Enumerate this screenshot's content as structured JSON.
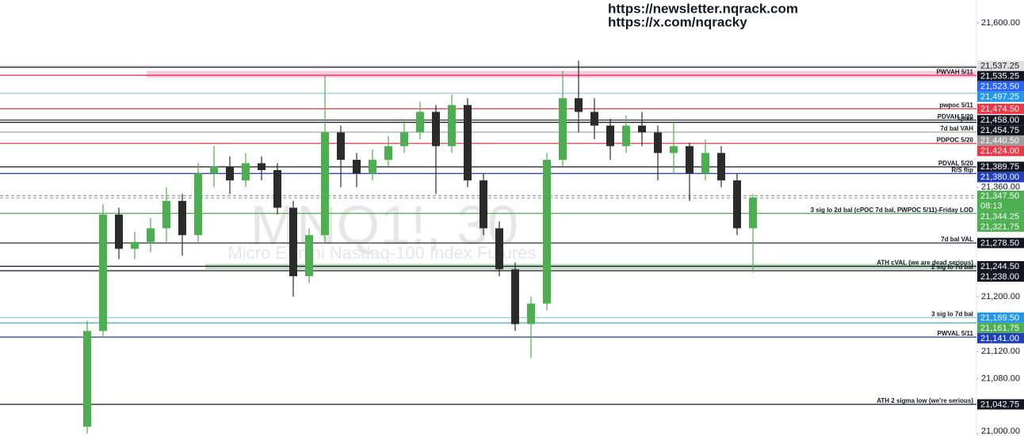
{
  "chart_data": {
    "type": "candlestick",
    "header": [
      "https://newsletter.nqrack.com",
      "https://x.com/nqracky"
    ],
    "symbol": "MNQ1!, 30",
    "description": "Micro E-mini Nasdaq-100 Index Futures",
    "ylim": [
      20996.5,
      21633.5
    ],
    "yticks": [
      {
        "value": 21600,
        "label": "21,600.00"
      },
      {
        "value": 21360,
        "label": "21,360.00"
      },
      {
        "value": 21200,
        "label": "21,200.00"
      },
      {
        "value": 21120,
        "label": "21,120.00"
      },
      {
        "value": 21080,
        "label": "21,080.00"
      },
      {
        "value": 21000,
        "label": "21,000.00"
      }
    ],
    "up_color": "#4caf50",
    "down_color": "#2b2b2b",
    "categories": [
      null,
      null,
      null,
      null,
      null,
      null,
      null,
      null,
      null,
      null,
      null,
      null,
      null,
      null,
      null,
      null,
      null,
      null,
      null,
      null,
      null,
      null,
      null,
      null,
      null,
      null,
      null,
      null,
      null,
      null,
      null,
      null,
      null,
      null,
      null,
      null,
      null,
      null,
      null,
      null,
      null,
      null,
      null
    ],
    "open": [
      21010,
      21150,
      21320,
      21270,
      21280,
      21300,
      21340,
      21290,
      21380,
      21390,
      21370,
      21395,
      21385,
      21330,
      21230,
      21290,
      21440,
      21400,
      21380,
      21400,
      21420,
      21440,
      21470,
      21420,
      21480,
      21370,
      21300,
      21240,
      21160,
      21190,
      21400,
      21490,
      21470,
      21450,
      21420,
      21450,
      21440,
      21410,
      21420,
      21380,
      21410,
      21370,
      21300
    ],
    "high": [
      21165,
      21335,
      21330,
      21295,
      21315,
      21360,
      21350,
      21395,
      21420,
      21405,
      21410,
      21405,
      21395,
      21340,
      21300,
      21525,
      21450,
      21410,
      21415,
      21435,
      21460,
      21485,
      21480,
      21495,
      21490,
      21380,
      21310,
      21250,
      21200,
      21410,
      21530,
      21545,
      21490,
      21460,
      21465,
      21470,
      21450,
      21455,
      21425,
      21430,
      21420,
      21380,
      21350
    ],
    "low": [
      21000,
      21140,
      21255,
      21255,
      21265,
      21280,
      21260,
      21280,
      21360,
      21350,
      21360,
      21370,
      21320,
      21200,
      21220,
      21280,
      21360,
      21360,
      21370,
      21390,
      21410,
      21430,
      21350,
      21410,
      21360,
      21290,
      21230,
      21150,
      21110,
      21180,
      21390,
      21440,
      21430,
      21400,
      21410,
      21420,
      21370,
      21380,
      21340,
      21370,
      21360,
      21290,
      21235
    ],
    "close": [
      21150,
      21320,
      21270,
      21280,
      21300,
      21340,
      21290,
      21380,
      21390,
      21370,
      21395,
      21385,
      21330,
      21230,
      21290,
      21440,
      21400,
      21380,
      21400,
      21420,
      21440,
      21470,
      21420,
      21480,
      21370,
      21300,
      21240,
      21160,
      21190,
      21400,
      21490,
      21470,
      21450,
      21420,
      21450,
      21440,
      21410,
      21420,
      21380,
      21410,
      21370,
      21300,
      21345
    ],
    "bands": [
      {
        "from": 21520,
        "to": 21530,
        "color": "#f8c8d4"
      },
      {
        "from": 21240,
        "to": 21248,
        "color": "#b9d8b9"
      }
    ],
    "countdown": "08:13",
    "levels": [
      {
        "price": 21537.25,
        "price_label": "21,537.25",
        "color": "#d0d0d0",
        "tag_color": "#e0e0e0",
        "text_color": "#131722"
      },
      {
        "price": 21535.25,
        "price_label": "21,535.25",
        "color": "#131722",
        "tag_color": "#131722",
        "text_color": "#ffffff"
      },
      {
        "price": 21523.5,
        "price_label": "21,523.50",
        "label": "PWVAH 5/11",
        "color": "#e91e63",
        "tag_color": "#2962ff",
        "text_color": "#ffffff"
      },
      {
        "price": 21497.25,
        "price_label": "21,497.25",
        "color": "#90caf9",
        "tag_color": "#2196f3",
        "text_color": "#ffffff"
      },
      {
        "price": 21474.5,
        "price_label": "21,474.50",
        "label": "pwpoc 5/11",
        "color": "#f23645",
        "tag_color": "#f23645",
        "text_color": "#ffffff"
      },
      {
        "price": 21458,
        "price_label": "21,458.00",
        "label": "PDVAH 5/20",
        "color": "#131722",
        "tag_color": "#131722",
        "text_color": "#ffffff"
      },
      {
        "price": 21454.75,
        "price_label": "21,454.75",
        "label": "spike",
        "color": "#131722",
        "tag_color": "#131722",
        "text_color": "#ffffff"
      },
      {
        "price": 21440.5,
        "price_label": "21,440.50",
        "label": "7d bal VAH",
        "color": "#9e9e9e",
        "tag_color": "#9e9e9e",
        "text_color": "#ffffff"
      },
      {
        "price": 21424,
        "price_label": "21,424.00",
        "label": "PDPOC 5/20",
        "color": "#f23645",
        "tag_color": "#f23645",
        "text_color": "#ffffff"
      },
      {
        "price": 21389.75,
        "price_label": "21,389.75",
        "label": "PDVAL 5/20",
        "color": "#131722",
        "tag_color": "#131722",
        "text_color": "#ffffff"
      },
      {
        "price": 21380,
        "price_label": "21,380.00",
        "label": "R/S flip",
        "color": "#1e3a9e",
        "tag_color": "#1e40c0",
        "text_color": "#ffffff"
      },
      {
        "price": 21347.5,
        "price_label": "21,347.50",
        "color": "#9e9e9e",
        "tag_color": "#4caf50",
        "text_color": "#ffffff",
        "current": true
      },
      {
        "price": 21344.25,
        "price_label": "21,344.25",
        "color": "#9e9e9e",
        "tag_color": "#4caf50",
        "text_color": "#ffffff"
      },
      {
        "price": 21321.75,
        "price_label": "21,321.75",
        "label": "3 sig lo 2d bal (cPOC 7d bal, PWPOC 5/11)-Friday LOD",
        "color": "#4caf50",
        "tag_color": "#4caf50",
        "text_color": "#ffffff"
      },
      {
        "price": 21278.5,
        "price_label": "21,278.50",
        "label": "7d bal VAL",
        "color": "#131722",
        "tag_color": "#131722",
        "text_color": "#ffffff"
      },
      {
        "price": 21244.5,
        "price_label": "21,244.50",
        "label": "ATH cVAL (we are dead serious)",
        "color": "#131722",
        "tag_color": "#131722",
        "text_color": "#ffffff"
      },
      {
        "price": 21238,
        "price_label": "21,238.00",
        "label": "2 sig lo 7d bal",
        "color": "#131722",
        "tag_color": "#131722",
        "text_color": "#ffffff"
      },
      {
        "price": 21169.5,
        "price_label": "21,169.50",
        "label": "3 sig lo 7d bal",
        "color": "#90caf9",
        "tag_color": "#2196f3",
        "text_color": "#ffffff"
      },
      {
        "price": 21161.75,
        "price_label": "21,161.75",
        "color": "#26a69a",
        "tag_color": "#4caf50",
        "text_color": "#ffffff"
      },
      {
        "price": 21141,
        "price_label": "21,141.00",
        "label": "PWVAL 5/11",
        "color": "#1e3a9e",
        "tag_color": "#1e40c0",
        "text_color": "#ffffff"
      },
      {
        "price": 21042.75,
        "price_label": "21,042.75",
        "label": "ATH 2 sigma low (we're serious)",
        "color": "#131722",
        "tag_color": "#131722",
        "text_color": "#ffffff"
      }
    ]
  }
}
